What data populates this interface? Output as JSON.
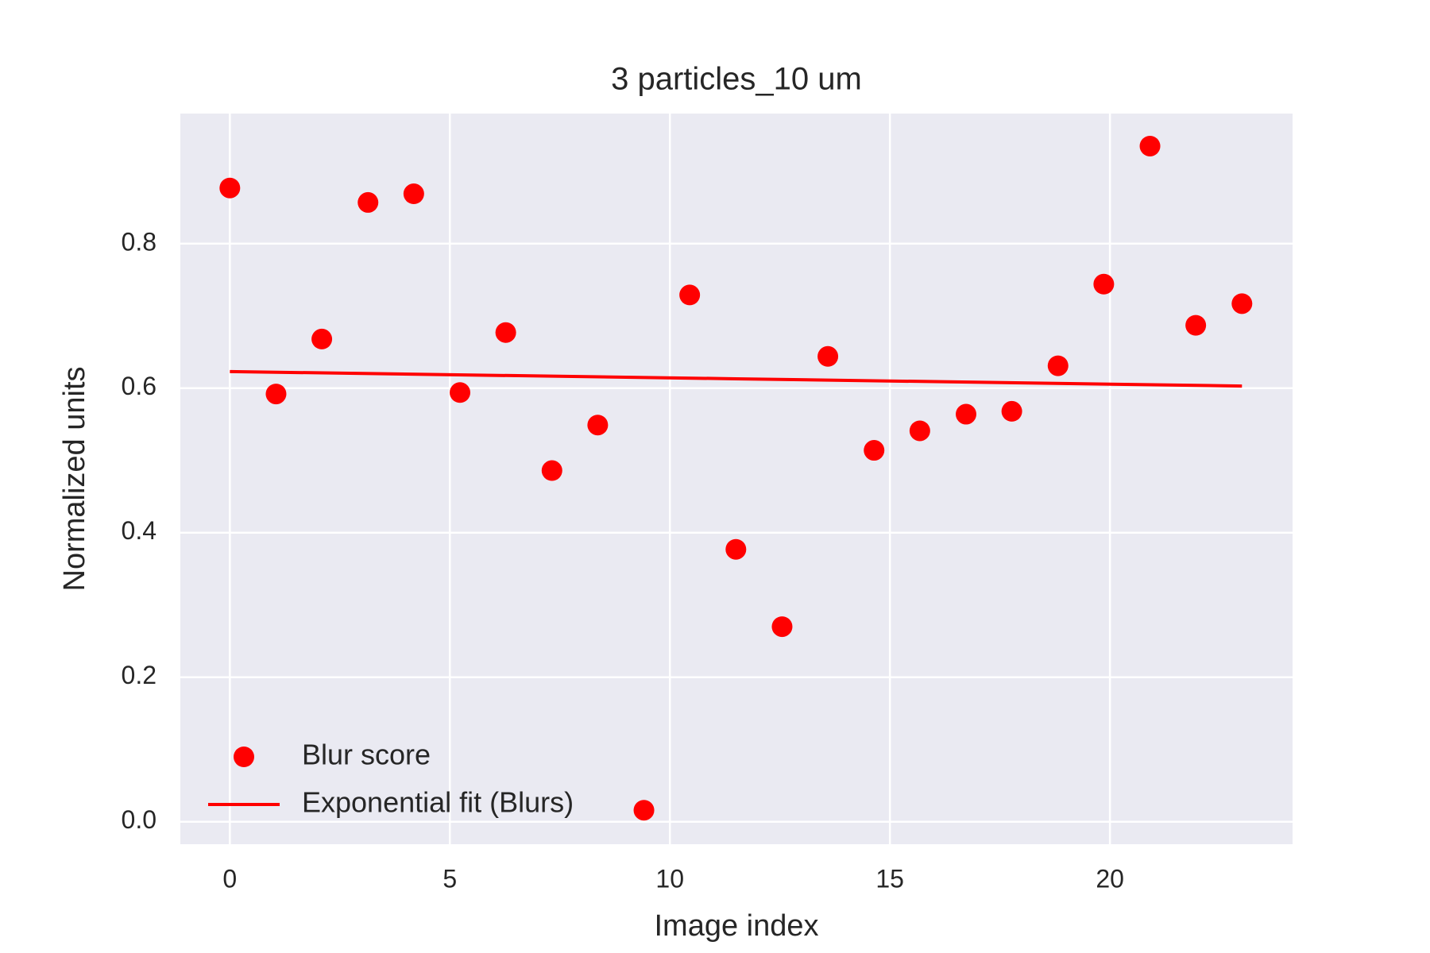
{
  "chart_data": {
    "type": "scatter",
    "title": "3 particles_10 um",
    "xlabel": "Image index",
    "ylabel": "Normalized units",
    "xlim": [
      -1.125,
      24.15
    ],
    "ylim": [
      -0.031,
      0.98
    ],
    "xticks": [
      0,
      5,
      10,
      15,
      20
    ],
    "yticks": [
      {
        "value": 0,
        "label": "0.0"
      },
      0.2,
      0.4,
      0.6,
      0.8
    ],
    "grid": true,
    "legend": "lower left",
    "series": [
      {
        "name": "Blur score",
        "type": "scatter",
        "color": "#ff0000",
        "x": [
          0,
          1.05,
          2.09,
          3.14,
          4.18,
          5.23,
          6.27,
          7.32,
          8.36,
          9.41,
          10.45,
          11.5,
          12.55,
          13.59,
          14.64,
          15.68,
          16.73,
          17.77,
          18.82,
          19.86,
          20.91,
          21.95,
          23
        ],
        "values": [
          0.877,
          0.592,
          0.668,
          0.857,
          0.869,
          0.594,
          0.677,
          0.486,
          0.549,
          0.016,
          0.729,
          0.377,
          0.27,
          0.644,
          0.514,
          0.541,
          0.564,
          0.568,
          0.631,
          0.744,
          0.935,
          0.687,
          0.717
        ]
      },
      {
        "name": "Exponential fit (Blurs)",
        "type": "line",
        "color": "#ff0000",
        "x": [
          0,
          11.5,
          23
        ],
        "values": [
          0.623,
          0.613,
          0.603
        ]
      }
    ]
  }
}
